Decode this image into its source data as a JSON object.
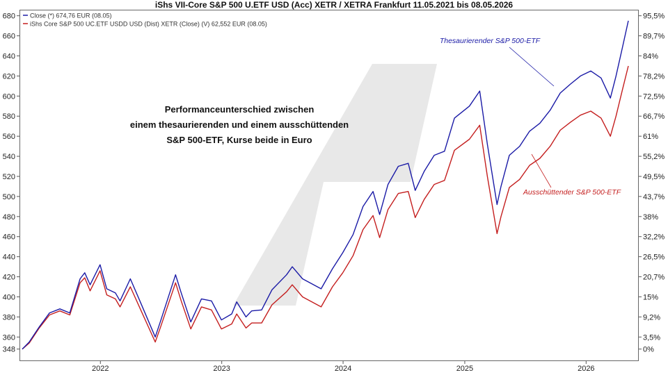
{
  "chart_data": {
    "type": "line",
    "title": "iShs VII-Core S&P 500 U.ETF USD (Acc) XETR / XETRA Frankfurt 11.05.2021 bis 08.05.2026",
    "x_axis": {
      "ticks": [
        "2022",
        "2023",
        "2024",
        "2025",
        "2026"
      ],
      "range": [
        "2021-05-11",
        "2026-05-08"
      ]
    },
    "y_axis_left": {
      "ticks": [
        348,
        360,
        380,
        400,
        420,
        440,
        460,
        480,
        500,
        520,
        540,
        560,
        580,
        600,
        620,
        640,
        660,
        680
      ],
      "range": [
        336,
        686
      ]
    },
    "y_axis_right": {
      "ticks": [
        "0%",
        "3,5%",
        "9,2%",
        "15%",
        "20,7%",
        "26,5%",
        "32,2%",
        "38%",
        "43,7%",
        "49,5%",
        "55,2%",
        "61%",
        "66,7%",
        "72,5%",
        "78,2%",
        "84%",
        "89,7%",
        "95,5%"
      ],
      "tick_values": [
        348,
        360,
        380,
        400,
        420,
        440,
        460,
        480,
        500,
        520,
        540,
        560,
        580,
        600,
        620,
        640,
        660,
        680
      ]
    },
    "grid": false,
    "legend": {
      "placement": "top-left",
      "entries": [
        {
          "label": "Close (*) 674,76 EUR (08.05)",
          "color": "#1a1aa6"
        },
        {
          "label": "iShs Core S&P 500 UC.ETF USDD USD (Dist) XETR (Close) (V) 62,552 EUR (08.05)",
          "color": "#c41e1e"
        }
      ]
    },
    "annotations": {
      "center_text": [
        "Performanceunterschied zwischen",
        "einem thesaurierenden und einem ausschüttenden",
        "S&P 500-ETF, Kurse beide in Euro"
      ],
      "acc_label": "Thesaurierender S&P 500-ETF",
      "dist_label": "Ausschüttender S&P 500-ETF"
    },
    "series": [
      {
        "color": "#1a1aa6",
        "points": [
          [
            "2021-05-11",
            348
          ],
          [
            "2021-06-01",
            355
          ],
          [
            "2021-07-01",
            370
          ],
          [
            "2021-08-01",
            384
          ],
          [
            "2021-09-01",
            388
          ],
          [
            "2021-10-01",
            384
          ],
          [
            "2021-11-01",
            418
          ],
          [
            "2021-11-15",
            424
          ],
          [
            "2021-12-01",
            412
          ],
          [
            "2021-12-31",
            432
          ],
          [
            "2022-01-20",
            408
          ],
          [
            "2022-02-15",
            404
          ],
          [
            "2022-03-01",
            396
          ],
          [
            "2022-04-01",
            418
          ],
          [
            "2022-05-01",
            395
          ],
          [
            "2022-06-15",
            360
          ],
          [
            "2022-07-01",
            376
          ],
          [
            "2022-08-15",
            422
          ],
          [
            "2022-09-01",
            404
          ],
          [
            "2022-09-30",
            375
          ],
          [
            "2022-11-01",
            398
          ],
          [
            "2022-12-01",
            396
          ],
          [
            "2022-12-31",
            377
          ],
          [
            "2023-01-31",
            383
          ],
          [
            "2023-02-15",
            395
          ],
          [
            "2023-03-15",
            380
          ],
          [
            "2023-04-01",
            386
          ],
          [
            "2023-05-01",
            387
          ],
          [
            "2023-06-01",
            407
          ],
          [
            "2023-07-15",
            422
          ],
          [
            "2023-08-01",
            430
          ],
          [
            "2023-09-01",
            418
          ],
          [
            "2023-10-27",
            408
          ],
          [
            "2023-11-30",
            428
          ],
          [
            "2023-12-31",
            444
          ],
          [
            "2024-01-31",
            462
          ],
          [
            "2024-03-01",
            490
          ],
          [
            "2024-03-31",
            505
          ],
          [
            "2024-04-20",
            482
          ],
          [
            "2024-05-15",
            512
          ],
          [
            "2024-06-15",
            530
          ],
          [
            "2024-07-15",
            533
          ],
          [
            "2024-08-05",
            506
          ],
          [
            "2024-09-01",
            525
          ],
          [
            "2024-10-01",
            541
          ],
          [
            "2024-11-01",
            545
          ],
          [
            "2024-12-01",
            578
          ],
          [
            "2025-01-15",
            590
          ],
          [
            "2025-02-15",
            605
          ],
          [
            "2025-03-10",
            552
          ],
          [
            "2025-04-08",
            492
          ],
          [
            "2025-04-20",
            510
          ],
          [
            "2025-05-15",
            541
          ],
          [
            "2025-06-15",
            550
          ],
          [
            "2025-07-15",
            565
          ],
          [
            "2025-08-15",
            573
          ],
          [
            "2025-09-15",
            586
          ],
          [
            "2025-10-15",
            603
          ],
          [
            "2025-11-15",
            612
          ],
          [
            "2025-12-15",
            620
          ],
          [
            "2026-01-15",
            625
          ],
          [
            "2026-02-15",
            618
          ],
          [
            "2026-03-15",
            598
          ],
          [
            "2026-04-01",
            620
          ],
          [
            "2026-04-20",
            648
          ],
          [
            "2026-05-08",
            675
          ]
        ]
      },
      {
        "color": "#c41e1e",
        "points": [
          [
            "2021-05-11",
            348
          ],
          [
            "2021-06-01",
            354
          ],
          [
            "2021-07-01",
            369
          ],
          [
            "2021-08-01",
            382
          ],
          [
            "2021-09-01",
            386
          ],
          [
            "2021-10-01",
            382
          ],
          [
            "2021-11-01",
            414
          ],
          [
            "2021-11-15",
            419
          ],
          [
            "2021-12-01",
            406
          ],
          [
            "2021-12-31",
            426
          ],
          [
            "2022-01-20",
            402
          ],
          [
            "2022-02-15",
            398
          ],
          [
            "2022-03-01",
            390
          ],
          [
            "2022-04-01",
            410
          ],
          [
            "2022-05-01",
            388
          ],
          [
            "2022-06-15",
            355
          ],
          [
            "2022-07-01",
            370
          ],
          [
            "2022-08-15",
            414
          ],
          [
            "2022-09-01",
            396
          ],
          [
            "2022-09-30",
            368
          ],
          [
            "2022-11-01",
            390
          ],
          [
            "2022-12-01",
            387
          ],
          [
            "2022-12-31",
            368
          ],
          [
            "2023-01-31",
            373
          ],
          [
            "2023-02-15",
            383
          ],
          [
            "2023-03-15",
            369
          ],
          [
            "2023-04-01",
            374
          ],
          [
            "2023-05-01",
            374
          ],
          [
            "2023-06-01",
            392
          ],
          [
            "2023-07-15",
            405
          ],
          [
            "2023-08-01",
            412
          ],
          [
            "2023-09-01",
            400
          ],
          [
            "2023-10-27",
            390
          ],
          [
            "2023-11-30",
            410
          ],
          [
            "2023-12-31",
            424
          ],
          [
            "2024-01-31",
            441
          ],
          [
            "2024-03-01",
            467
          ],
          [
            "2024-03-31",
            481
          ],
          [
            "2024-04-20",
            459
          ],
          [
            "2024-05-15",
            487
          ],
          [
            "2024-06-15",
            503
          ],
          [
            "2024-07-15",
            505
          ],
          [
            "2024-08-05",
            479
          ],
          [
            "2024-09-01",
            497
          ],
          [
            "2024-10-01",
            512
          ],
          [
            "2024-11-01",
            516
          ],
          [
            "2024-12-01",
            546
          ],
          [
            "2025-01-15",
            557
          ],
          [
            "2025-02-15",
            571
          ],
          [
            "2025-03-10",
            520
          ],
          [
            "2025-04-08",
            463
          ],
          [
            "2025-04-20",
            480
          ],
          [
            "2025-05-15",
            509
          ],
          [
            "2025-06-15",
            517
          ],
          [
            "2025-07-15",
            531
          ],
          [
            "2025-08-15",
            538
          ],
          [
            "2025-09-15",
            550
          ],
          [
            "2025-10-15",
            566
          ],
          [
            "2025-11-15",
            574
          ],
          [
            "2025-12-15",
            581
          ],
          [
            "2026-01-15",
            585
          ],
          [
            "2026-02-15",
            578
          ],
          [
            "2026-03-15",
            560
          ],
          [
            "2026-04-01",
            580
          ],
          [
            "2026-04-20",
            606
          ],
          [
            "2026-05-08",
            630
          ]
        ]
      }
    ]
  }
}
